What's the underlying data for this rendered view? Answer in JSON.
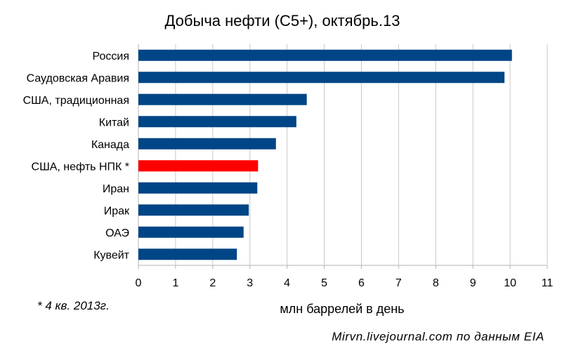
{
  "chart_data": {
    "type": "bar",
    "orientation": "horizontal",
    "title": "Добыча нефти (С5+), октябрь.13",
    "xlabel": "млн баррелей в день",
    "ylabel": "",
    "categories": [
      "Россия",
      "Саудовская Аравия",
      "США, традиционная",
      "Китай",
      "Канада",
      "США, нефть НПК *",
      "Иран",
      "Ирак",
      "ОАЭ",
      "Кувейт"
    ],
    "values": [
      10.05,
      9.85,
      4.53,
      4.25,
      3.7,
      3.22,
      3.2,
      2.97,
      2.83,
      2.65
    ],
    "bar_colors": [
      "#004586",
      "#004586",
      "#004586",
      "#004586",
      "#004586",
      "#ff0000",
      "#004586",
      "#004586",
      "#004586",
      "#004586"
    ],
    "xlim": [
      0,
      11
    ],
    "xticks": [
      0,
      1,
      2,
      3,
      4,
      5,
      6,
      7,
      8,
      9,
      10,
      11
    ],
    "grid": "vertical",
    "footnote": "* 4 кв. 2013г.",
    "source": "Mirvn.livejournal.com по данным EIA"
  }
}
